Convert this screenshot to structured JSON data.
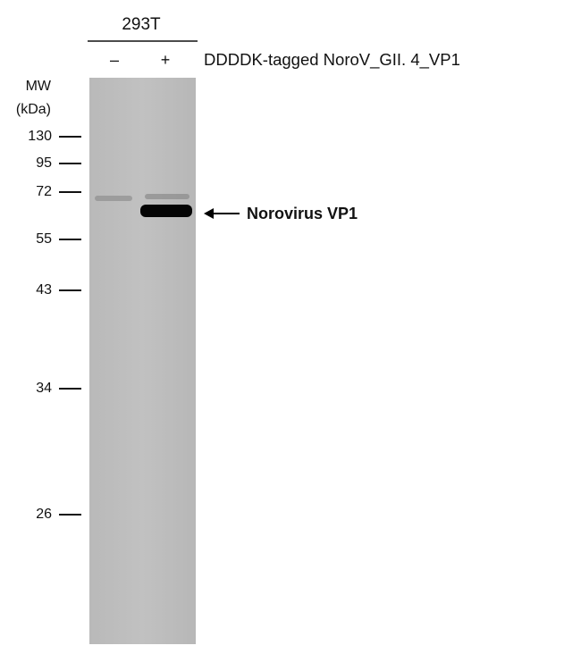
{
  "header": {
    "cell_line": "293T",
    "lanes": [
      "–",
      "+"
    ],
    "treatment": "DDDDK-tagged NoroV_GII. 4_VP1"
  },
  "mw": {
    "label": "MW",
    "unit": "(kDa)",
    "markers": [
      "130",
      "95",
      "72",
      "55",
      "43",
      "34",
      "26"
    ]
  },
  "band_label": "Norovirus VP1"
}
